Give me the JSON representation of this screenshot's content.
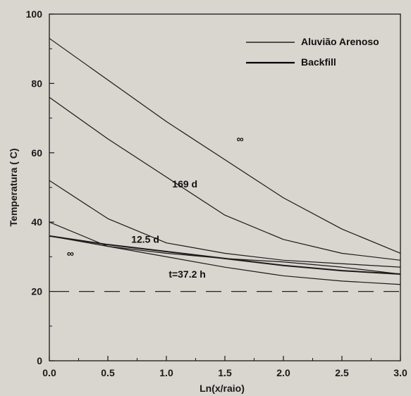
{
  "chart_data": {
    "type": "line",
    "xlabel": "Ln(x/raio)",
    "ylabel": "Temperatura ( C)",
    "xlim": [
      0,
      3
    ],
    "ylim": [
      0,
      100
    ],
    "xticks": [
      "0.0",
      "0.5",
      "1.0",
      "1.5",
      "2.0",
      "2.5",
      "3.0"
    ],
    "yticks": [
      "0",
      "20",
      "40",
      "60",
      "80",
      "100"
    ],
    "grid": false,
    "legend_position": "top-right",
    "legend": [
      {
        "label": "Aluvião Arenoso",
        "style": "solid",
        "color": "#222222"
      },
      {
        "label": "Backfill",
        "style": "solid",
        "color": "#000000"
      }
    ],
    "annotations": [
      {
        "text": "∞",
        "x": 1.6,
        "y": 63
      },
      {
        "text": "169 d",
        "x": 1.05,
        "y": 50
      },
      {
        "text": "12.5 d",
        "x": 0.7,
        "y": 34
      },
      {
        "text": "∞",
        "x": 0.15,
        "y": 30
      },
      {
        "text": "t=37.2 h",
        "x": 1.02,
        "y": 24
      }
    ],
    "series": [
      {
        "values_x": [
          0.0,
          0.5,
          1.0,
          1.5,
          2.0,
          2.5,
          3.0
        ],
        "values_y": [
          93,
          81,
          69,
          58,
          47,
          38,
          31
        ],
        "weight": 1.2
      },
      {
        "values_x": [
          0.0,
          0.5,
          1.0,
          1.5,
          2.0,
          2.5,
          3.0
        ],
        "values_y": [
          76,
          64,
          53,
          42,
          35,
          31,
          29
        ],
        "weight": 1.2
      },
      {
        "values_x": [
          0.0,
          0.5,
          1.0,
          1.5,
          2.0,
          2.5,
          3.0
        ],
        "values_y": [
          52,
          41,
          34,
          31,
          29,
          28,
          27
        ],
        "weight": 1.2
      },
      {
        "values_x": [
          0.0,
          0.5,
          1.0,
          1.5,
          2.0,
          2.5,
          3.0
        ],
        "values_y": [
          40,
          33,
          31,
          29.5,
          28.5,
          27,
          25
        ],
        "weight": 1.2
      },
      {
        "values_x": [
          0.0,
          0.5,
          1.0,
          1.5,
          2.0,
          2.5,
          3.0
        ],
        "values_y": [
          36,
          33.5,
          31.5,
          29.5,
          27.5,
          26,
          25
        ],
        "weight": 2.0
      },
      {
        "values_x": [
          0.0,
          0.5,
          1.0,
          1.5,
          2.0,
          2.5,
          3.0
        ],
        "values_y": [
          36,
          33,
          30,
          27,
          24.5,
          23,
          22
        ],
        "weight": 1.2
      }
    ],
    "reference_line": {
      "y": 20,
      "style": "dashed"
    }
  }
}
